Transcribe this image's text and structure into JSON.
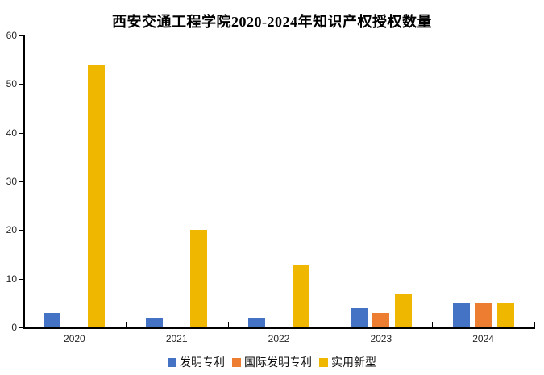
{
  "chart_data": {
    "type": "bar",
    "title": "西安交通工程学院2020-2024年知识产权授权数量",
    "categories": [
      "2020",
      "2021",
      "2022",
      "2023",
      "2024"
    ],
    "series": [
      {
        "id": "invention-patent",
        "name": "发明专利",
        "color": "#4472C4",
        "values": [
          3,
          2,
          2,
          4,
          5
        ]
      },
      {
        "id": "intl-invention-patent",
        "name": "国际发明专利",
        "color": "#ED7D31",
        "values": [
          0,
          0,
          0,
          3,
          5
        ]
      },
      {
        "id": "utility-model",
        "name": "实用新型",
        "color": "#EFB700",
        "values": [
          54,
          20,
          13,
          7,
          5
        ]
      }
    ],
    "xlabel": "",
    "ylabel": "",
    "ylim": [
      0,
      60
    ],
    "yticks": [
      0,
      10,
      20,
      30,
      40,
      50,
      60
    ],
    "grid": false,
    "legend_position": "bottom",
    "background_color": "#FFFFFF",
    "axis_color": "#000000",
    "tick_label_color": "#262626",
    "title_color": "#000000"
  }
}
